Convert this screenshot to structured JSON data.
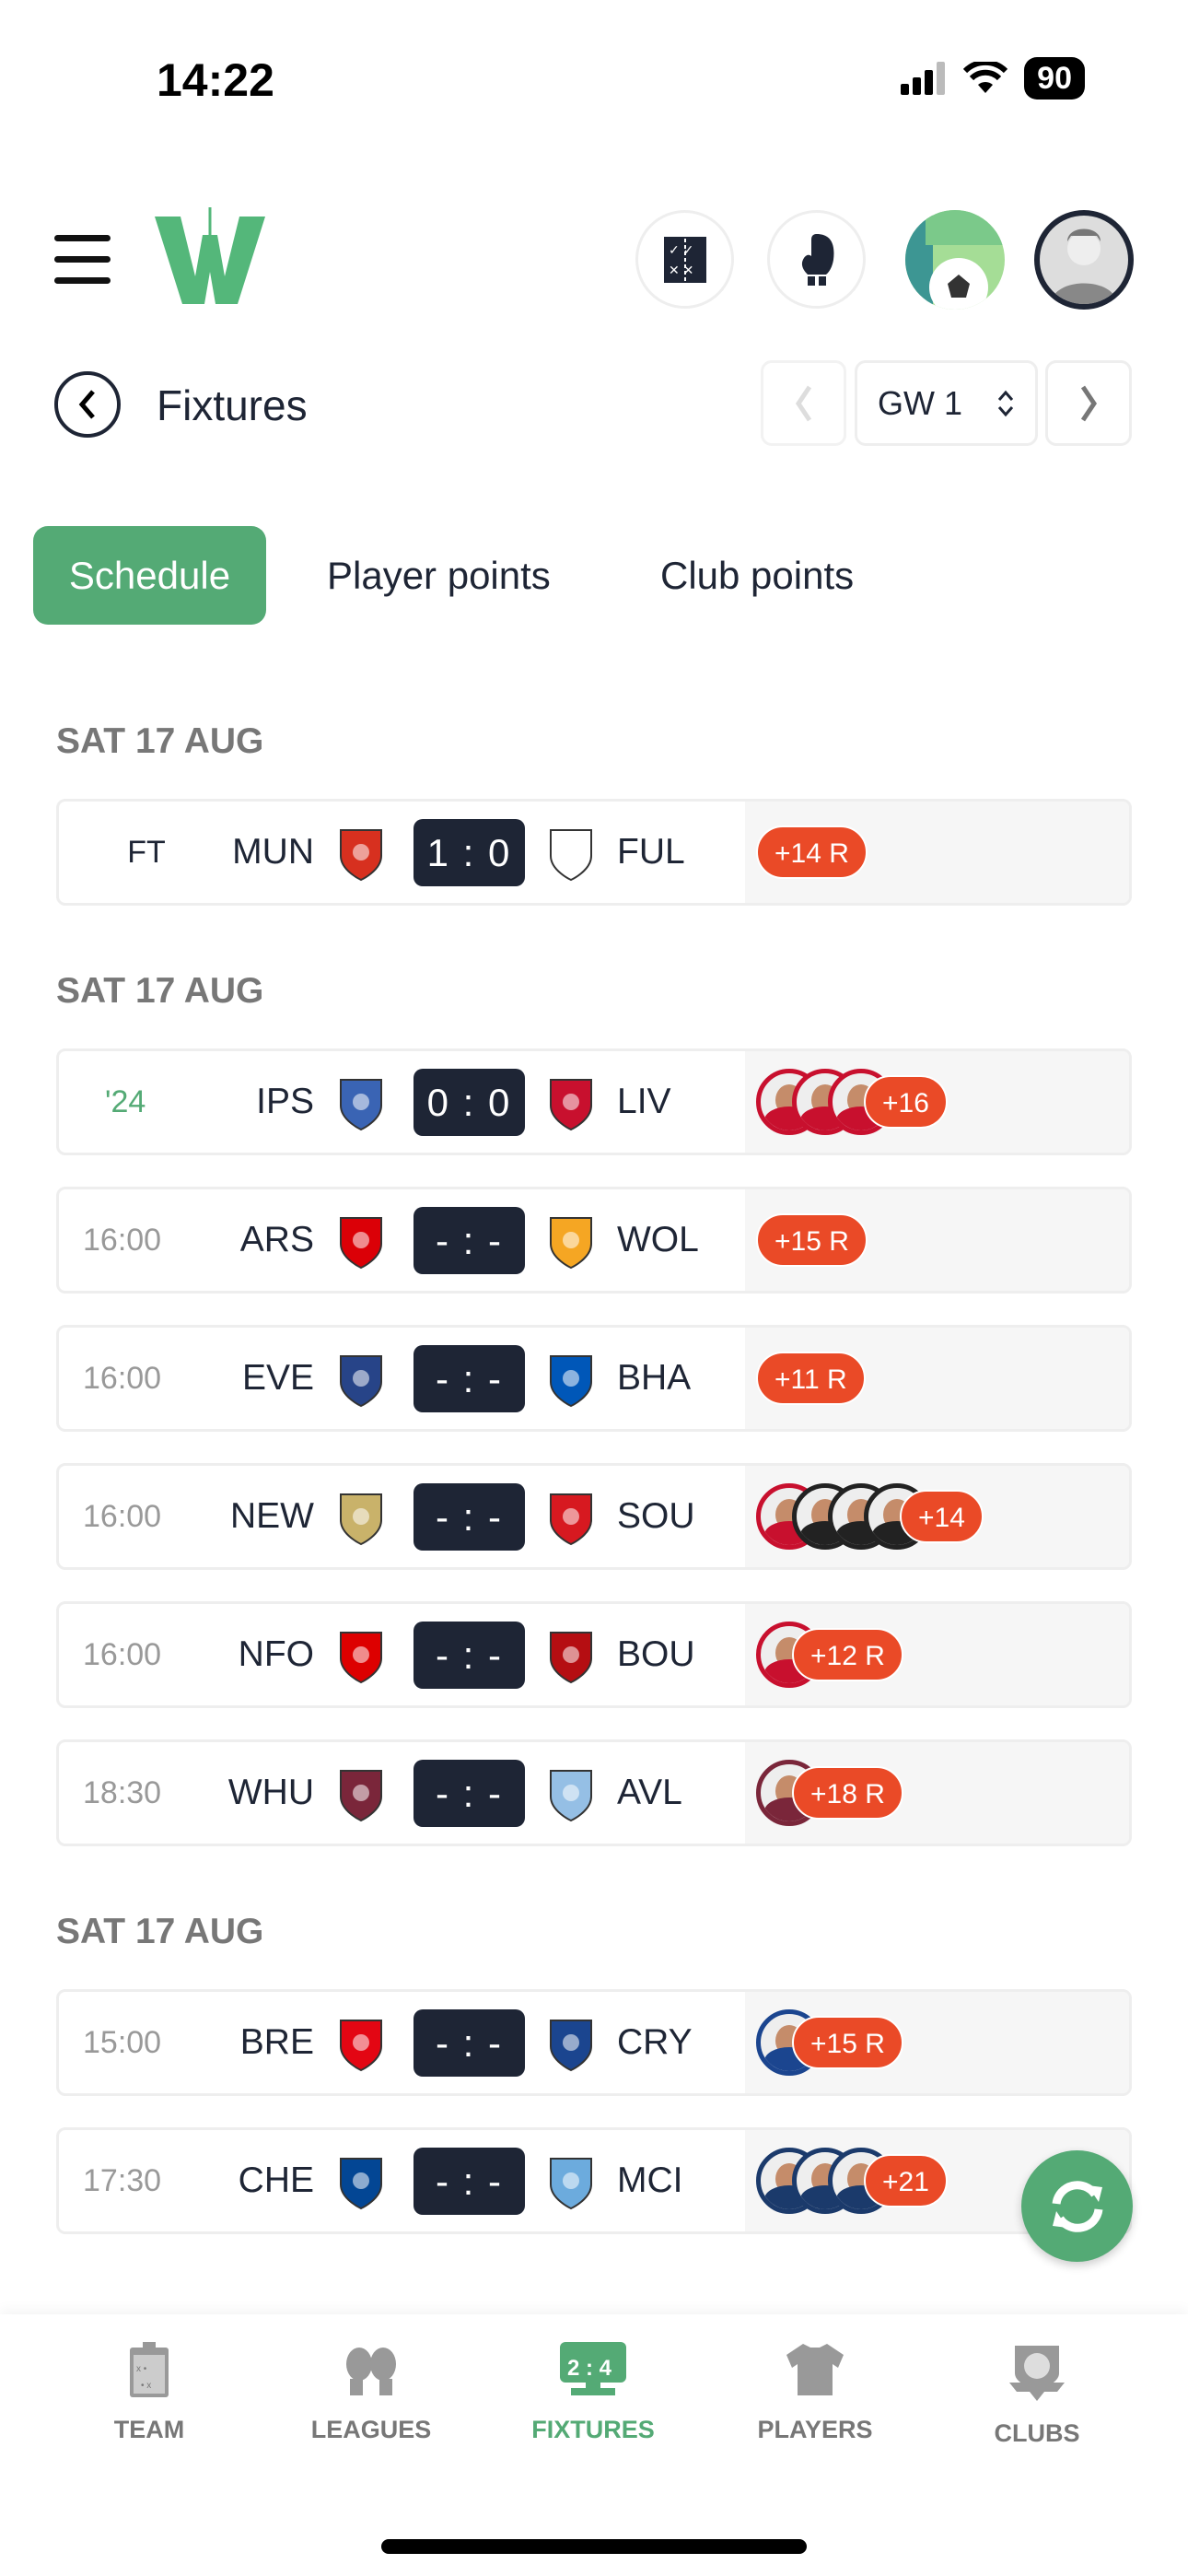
{
  "status_bar": {
    "time": "14:22",
    "battery": "90"
  },
  "header": {
    "icons": [
      "tactics-board-icon",
      "boxing-glove-icon",
      "ticket-football-icon",
      "user-avatar-icon"
    ]
  },
  "page": {
    "title": "Fixtures",
    "gameweek": "GW 1"
  },
  "tabs": [
    {
      "label": "Schedule",
      "active": true
    },
    {
      "label": "Player points",
      "active": false
    },
    {
      "label": "Club points",
      "active": false
    }
  ],
  "colors": {
    "accent": "#54aa75",
    "dark": "#1e2535",
    "badge": "#ea4a27"
  },
  "sections": [
    {
      "date": "SAT 17 AUG",
      "matches": [
        {
          "status": "FT",
          "type": "ft",
          "home": "MUN",
          "away": "FUL",
          "score": "1 : 0",
          "badge": "+14 R",
          "home_color": "#d7301f",
          "away_color": "#ffffff",
          "avatars": []
        }
      ]
    },
    {
      "date": "SAT 17 AUG",
      "matches": [
        {
          "status": "'24",
          "type": "live",
          "home": "IPS",
          "away": "LIV",
          "score": "0 : 0",
          "badge": "+16",
          "home_color": "#3a64b4",
          "away_color": "#c8102e",
          "avatars": [
            "#c8102e",
            "#c8102e",
            "#c8102e"
          ]
        },
        {
          "status": "16:00",
          "type": "time",
          "home": "ARS",
          "away": "WOL",
          "score": "- : -",
          "badge": "+15 R",
          "home_color": "#db0007",
          "away_color": "#f5a623",
          "avatars": []
        },
        {
          "status": "16:00",
          "type": "time",
          "home": "EVE",
          "away": "BHA",
          "score": "- : -",
          "badge": "+11 R",
          "home_color": "#274488",
          "away_color": "#0057b8",
          "avatars": []
        },
        {
          "status": "16:00",
          "type": "time",
          "home": "NEW",
          "away": "SOU",
          "score": "- : -",
          "badge": "+14",
          "home_color": "#c9b26a",
          "away_color": "#d71920",
          "avatars": [
            "#c8102e",
            "#222222",
            "#222222",
            "#222222"
          ]
        },
        {
          "status": "16:00",
          "type": "time",
          "home": "NFO",
          "away": "BOU",
          "score": "- : -",
          "badge": "+12 R",
          "home_color": "#dd0000",
          "away_color": "#b50e12",
          "avatars": [
            "#c8102e"
          ]
        },
        {
          "status": "18:30",
          "type": "time",
          "home": "WHU",
          "away": "AVL",
          "score": "- : -",
          "badge": "+18 R",
          "home_color": "#7a263a",
          "away_color": "#95bfe5",
          "avatars": [
            "#7a263a"
          ]
        }
      ]
    },
    {
      "date": "SAT 17 AUG",
      "matches": [
        {
          "status": "15:00",
          "type": "time",
          "home": "BRE",
          "away": "CRY",
          "score": "- : -",
          "badge": "+15 R",
          "home_color": "#e30613",
          "away_color": "#1b458f",
          "avatars": [
            "#1b458f"
          ]
        },
        {
          "status": "17:30",
          "type": "time",
          "home": "CHE",
          "away": "MCI",
          "score": "- : -",
          "badge": "+21",
          "home_color": "#034694",
          "away_color": "#6cabdd",
          "avatars": [
            "#1b3a6b",
            "#1b3a6b",
            "#1b3a6b"
          ]
        }
      ]
    }
  ],
  "bottom_nav": [
    {
      "label": "TEAM",
      "icon": "clipboard-tactics-icon"
    },
    {
      "label": "LEAGUES",
      "icon": "boxing-gloves-icon"
    },
    {
      "label": "FIXTURES",
      "icon": "scoreboard-icon",
      "active": true
    },
    {
      "label": "PLAYERS",
      "icon": "jersey-icon"
    },
    {
      "label": "CLUBS",
      "icon": "club-crest-icon"
    }
  ]
}
